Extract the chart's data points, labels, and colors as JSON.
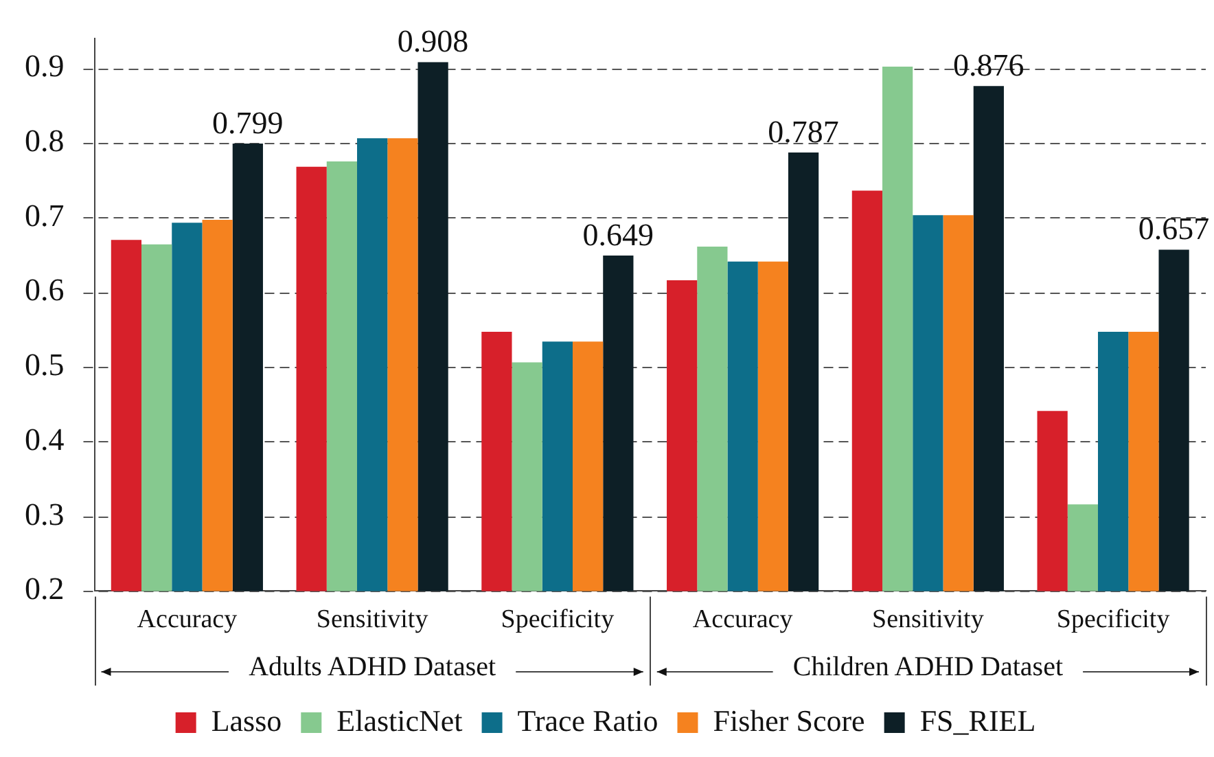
{
  "chart_data": {
    "type": "bar",
    "categories": [
      "Accuracy",
      "Sensitivity",
      "Specificity",
      "Accuracy",
      "Sensitivity",
      "Specificity"
    ],
    "series": [
      {
        "name": "Lasso",
        "color": "#d7202a",
        "values": [
          0.67,
          0.768,
          0.547,
          0.616,
          0.736,
          0.441
        ]
      },
      {
        "name": "ElasticNet",
        "color": "#86c98f",
        "values": [
          0.664,
          0.775,
          0.506,
          0.661,
          0.902,
          0.316
        ]
      },
      {
        "name": "Trace Ratio",
        "color": "#0d6e8a",
        "values": [
          0.693,
          0.806,
          0.534,
          0.641,
          0.703,
          0.547
        ]
      },
      {
        "name": "Fisher Score",
        "color": "#f5821f",
        "values": [
          0.697,
          0.806,
          0.534,
          0.641,
          0.703,
          0.547
        ]
      },
      {
        "name": "FS_RIEL",
        "color": "#0d1f26",
        "values": [
          0.799,
          0.908,
          0.649,
          0.787,
          0.876,
          0.657
        ],
        "value_labels": [
          "0.799",
          "0.908",
          "0.649",
          "0.787",
          "0.876",
          "0.657"
        ]
      }
    ],
    "ylim": [
      0.2,
      0.94
    ],
    "yticks": [
      0.2,
      0.3,
      0.4,
      0.5,
      0.6,
      0.7,
      0.8,
      0.9
    ],
    "annotations": [
      "Adults ADHD Dataset",
      "Children ADHD Dataset"
    ],
    "grid": "y",
    "legend": "bottom"
  }
}
